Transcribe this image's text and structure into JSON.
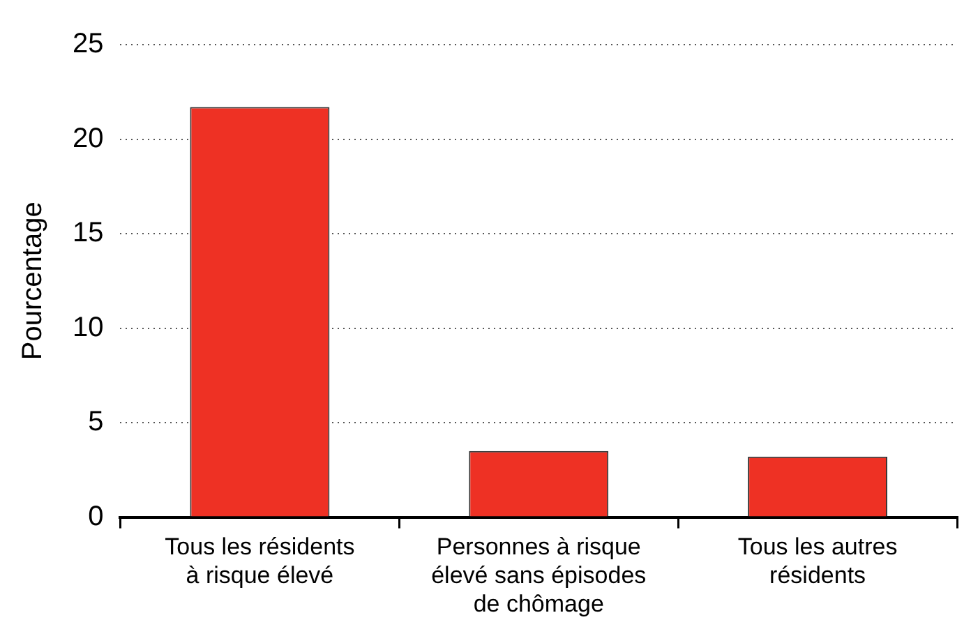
{
  "chart_data": {
    "type": "bar",
    "ylabel": "Pourcentage",
    "categories": [
      "Tous les résidents à risque élevé",
      "Personnes à risque élevé sans épisodes de chômage",
      "Tous les autres résidents"
    ],
    "values": [
      21.7,
      3.5,
      3.2
    ],
    "color": "#ee3124",
    "ylim": [
      0,
      25
    ],
    "yticks": [
      0,
      5,
      10,
      15,
      20,
      25
    ],
    "grid": "y",
    "legend": false
  }
}
